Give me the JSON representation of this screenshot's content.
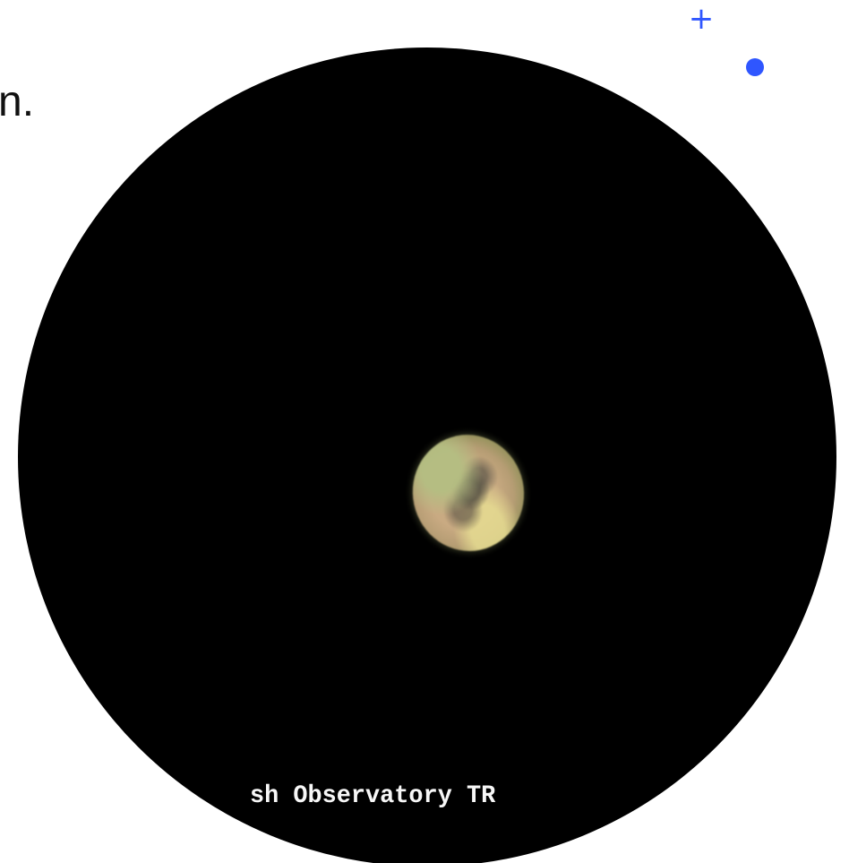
{
  "visible_text": {
    "cut_off_text": "n.",
    "image_credit": "sh Observatory TR"
  },
  "controls": {
    "add_icon": "plus-icon",
    "point_icon": "dot-icon"
  },
  "image": {
    "subject": "telescope view of Mars",
    "eyepiece_color": "#000000",
    "control_color": "#2f56ff"
  }
}
